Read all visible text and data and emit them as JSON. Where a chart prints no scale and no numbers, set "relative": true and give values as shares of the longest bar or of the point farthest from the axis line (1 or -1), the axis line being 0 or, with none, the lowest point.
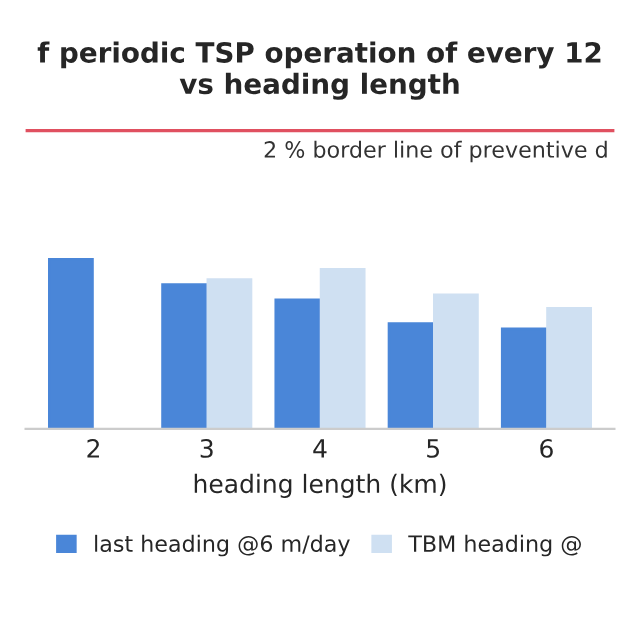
{
  "chart_data": {
    "type": "bar",
    "title": "f periodic TSP operation of every 12\nvs heading length",
    "xlabel": "heading length (km)",
    "relative": true,
    "categories": [
      "2",
      "3",
      "4",
      "5",
      "6"
    ],
    "series": [
      {
        "name": "last heading @6 m/day",
        "color": "#4a86d8",
        "values": [
          1.0,
          0.85,
          0.76,
          0.62,
          0.59
        ]
      },
      {
        "name": "TBM heading @",
        "color": "#cfe0f2",
        "values": [
          null,
          0.88,
          0.94,
          0.79,
          0.71
        ]
      }
    ],
    "ref_lines": [
      {
        "axis": "y",
        "value": 1.76,
        "label": "2 % border line of preventive d",
        "color": "#e05060",
        "line_style": "solid"
      }
    ],
    "legend": "bottom"
  }
}
